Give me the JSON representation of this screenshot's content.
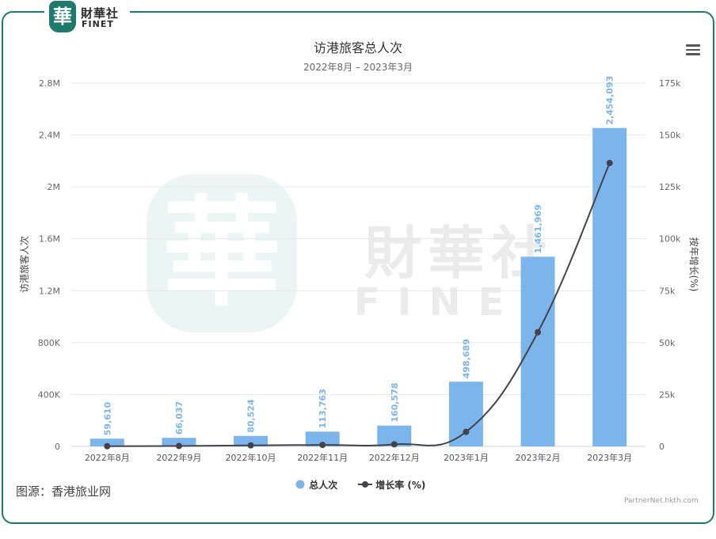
{
  "brand": {
    "badge_char": "華",
    "name_cn": "財華社",
    "name_en": "FINET"
  },
  "watermark": {
    "badge_char": "華",
    "name_cn": "財華社",
    "name_en": "FINET"
  },
  "menu_icon": "hamburger-menu-icon",
  "source_text": "图源：香港旅业网",
  "credit_text": "PartnerNet.hkth.com",
  "colors": {
    "bar": "#7cb5ec",
    "line": "#434348",
    "frame": "#1f7a6e"
  },
  "chart_data": {
    "type": "bar+line",
    "title": "访港旅客总人次",
    "subtitle": "2022年8月 – 2023年3月",
    "categories": [
      "2022年8月",
      "2022年9月",
      "2022年10月",
      "2022年11月",
      "2022年12月",
      "2023年1月",
      "2023年2月",
      "2023年3月"
    ],
    "series": [
      {
        "name": "总人次",
        "type": "bar",
        "axis": "left",
        "values": [
          59610,
          66037,
          80524,
          113763,
          160578,
          498689,
          1461969,
          2454093
        ],
        "labels": [
          "59,610",
          "66,037",
          "80,524",
          "113,763",
          "160,578",
          "498,689",
          "1,461,969",
          "2,454,093"
        ]
      },
      {
        "name": "增长率 (%)",
        "type": "line",
        "axis": "right",
        "values": [
          100,
          200,
          500,
          700,
          1000,
          7000,
          55000,
          136500
        ]
      }
    ],
    "y_left": {
      "label": "访港旅客人次",
      "min": 0,
      "max": 2800000,
      "ticks": [
        0,
        400000,
        800000,
        1200000,
        1600000,
        2000000,
        2400000,
        2800000
      ],
      "tick_labels": [
        "0",
        "400K",
        "800K",
        "1.2M",
        "1.6M",
        "2M",
        "2.4M",
        "2.8M"
      ]
    },
    "y_right": {
      "label": "按年增长(%)",
      "min": 0,
      "max": 175000,
      "ticks": [
        0,
        25000,
        50000,
        75000,
        100000,
        125000,
        150000,
        175000
      ],
      "tick_labels": [
        "0",
        "25k",
        "50k",
        "75k",
        "100k",
        "125k",
        "150k",
        "175k"
      ]
    },
    "grid": true,
    "legend": "bottom-center"
  }
}
